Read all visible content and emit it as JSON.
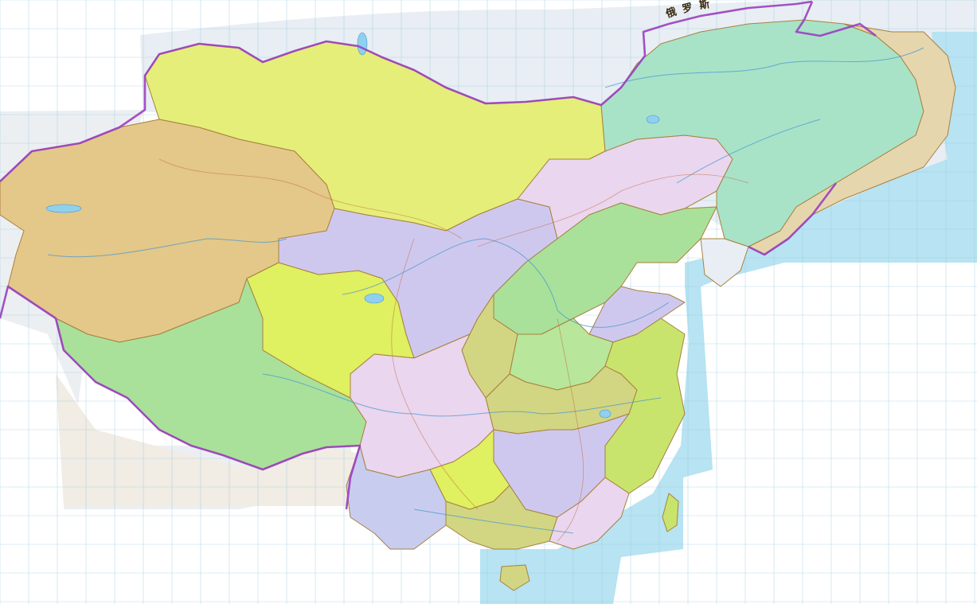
{
  "map": {
    "labels": {
      "russia_1": "俄",
      "russia_2": "罗",
      "russia_3": "斯"
    },
    "colors": {
      "sea": "#b7e3f2",
      "foreign_land": "#e8eef3",
      "international_border": "#9a3fbf",
      "region_yellow": "#e5ee78",
      "region_tan": "#e3c889",
      "region_green": "#a9e19a",
      "region_lavender": "#cfc8ee",
      "region_pink": "#ead6ee",
      "region_olive": "#d2d682",
      "region_teal": "#a8e3c8"
    }
  }
}
